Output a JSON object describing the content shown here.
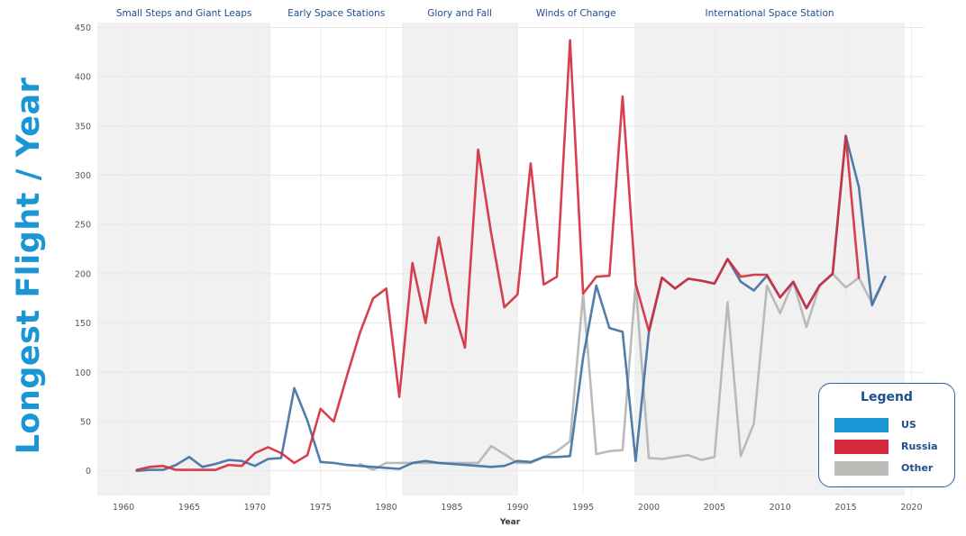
{
  "chart_data": {
    "type": "line",
    "ylabel": "Longest Flight / Year",
    "xlabel": "Year",
    "xlim": [
      1958,
      2021
    ],
    "ylim": [
      -25,
      455
    ],
    "x_ticks": [
      1960,
      1965,
      1970,
      1975,
      1980,
      1985,
      1990,
      1995,
      2000,
      2005,
      2010,
      2015,
      2020
    ],
    "y_ticks": [
      0,
      50,
      100,
      150,
      200,
      250,
      300,
      350,
      400,
      450
    ],
    "grid": true,
    "eras": [
      {
        "label": "Small Steps and Giant Leaps",
        "start": 1958,
        "end": 1971.2,
        "shaded": true
      },
      {
        "label": "Early Space Stations",
        "start": 1971.2,
        "end": 1981.2,
        "shaded": false
      },
      {
        "label": "Glory and Fall",
        "start": 1981.2,
        "end": 1990,
        "shaded": true
      },
      {
        "label": "Winds of Change",
        "start": 1990,
        "end": 1998.9,
        "shaded": false
      },
      {
        "label": "International Space Station",
        "start": 1998.9,
        "end": 2019.5,
        "shaded": true
      }
    ],
    "legend": {
      "title": "Legend",
      "placement": "bottom-right",
      "items": [
        {
          "label": "US",
          "color": "#1a96d4"
        },
        {
          "label": "Russia",
          "color": "#d42a3c"
        },
        {
          "label": "Other",
          "color": "#bcbcb8"
        }
      ]
    },
    "series": [
      {
        "name": "Other",
        "color": "#b4b4b4",
        "points": [
          [
            1978,
            7
          ],
          [
            1979,
            1
          ],
          [
            1980,
            8
          ],
          [
            1981,
            8
          ],
          [
            1982,
            8
          ],
          [
            1983,
            8
          ],
          [
            1984,
            8
          ],
          [
            1985,
            8
          ],
          [
            1986,
            8
          ],
          [
            1987,
            8
          ],
          [
            1988,
            25
          ],
          [
            1989,
            17
          ],
          [
            1990,
            8
          ],
          [
            1991,
            8
          ],
          [
            1992,
            14
          ],
          [
            1993,
            20
          ],
          [
            1994,
            30
          ],
          [
            1995,
            180
          ],
          [
            1996,
            17
          ],
          [
            1997,
            20
          ],
          [
            1998,
            21
          ],
          [
            1999,
            190
          ],
          [
            2000,
            13
          ],
          [
            2001,
            12
          ],
          [
            2002,
            14
          ],
          [
            2003,
            16
          ],
          [
            2004,
            11
          ],
          [
            2005,
            14
          ],
          [
            2006,
            171
          ],
          [
            2007,
            15
          ],
          [
            2008,
            48
          ],
          [
            2009,
            188
          ],
          [
            2010,
            160
          ],
          [
            2011,
            192
          ],
          [
            2012,
            146
          ],
          [
            2013,
            188
          ],
          [
            2014,
            200
          ],
          [
            2015,
            186
          ],
          [
            2016,
            196
          ],
          [
            2017,
            170
          ],
          [
            2018,
            197
          ]
        ]
      },
      {
        "name": "US",
        "color": "#3f6fa0",
        "points": [
          [
            1961,
            0
          ],
          [
            1962,
            1
          ],
          [
            1963,
            1
          ],
          [
            1964,
            6
          ],
          [
            1965,
            14
          ],
          [
            1966,
            4
          ],
          [
            1967,
            7
          ],
          [
            1968,
            11
          ],
          [
            1969,
            10
          ],
          [
            1970,
            5
          ],
          [
            1971,
            12
          ],
          [
            1972,
            13
          ],
          [
            1973,
            84
          ],
          [
            1974,
            51
          ],
          [
            1975,
            9
          ],
          [
            1976,
            8
          ],
          [
            1977,
            6
          ],
          [
            1978,
            5
          ],
          [
            1979,
            4
          ],
          [
            1980,
            3
          ],
          [
            1981,
            2
          ],
          [
            1982,
            8
          ],
          [
            1983,
            10
          ],
          [
            1984,
            8
          ],
          [
            1985,
            7
          ],
          [
            1986,
            6
          ],
          [
            1987,
            5
          ],
          [
            1988,
            4
          ],
          [
            1989,
            5
          ],
          [
            1990,
            10
          ],
          [
            1991,
            9
          ],
          [
            1992,
            14
          ],
          [
            1993,
            14
          ],
          [
            1994,
            15
          ],
          [
            1995,
            115
          ],
          [
            1996,
            188
          ],
          [
            1997,
            145
          ],
          [
            1998,
            141
          ],
          [
            1999,
            10
          ],
          [
            2000,
            140
          ],
          [
            2001,
            196
          ],
          [
            2002,
            185
          ],
          [
            2003,
            195
          ],
          [
            2004,
            193
          ],
          [
            2005,
            190
          ],
          [
            2006,
            215
          ],
          [
            2007,
            192
          ],
          [
            2008,
            183
          ],
          [
            2009,
            198
          ],
          [
            2010,
            176
          ],
          [
            2011,
            192
          ],
          [
            2012,
            165
          ],
          [
            2013,
            188
          ],
          [
            2014,
            200
          ],
          [
            2015,
            340
          ],
          [
            2016,
            288
          ],
          [
            2017,
            168
          ],
          [
            2018,
            197
          ]
        ]
      },
      {
        "name": "Russia",
        "color": "#d42a3c",
        "points": [
          [
            1961,
            1
          ],
          [
            1962,
            4
          ],
          [
            1963,
            5
          ],
          [
            1964,
            1
          ],
          [
            1965,
            1
          ],
          [
            1966,
            1
          ],
          [
            1967,
            1
          ],
          [
            1968,
            6
          ],
          [
            1969,
            5
          ],
          [
            1970,
            18
          ],
          [
            1971,
            24
          ],
          [
            1972,
            18
          ],
          [
            1973,
            8
          ],
          [
            1974,
            16
          ],
          [
            1975,
            63
          ],
          [
            1976,
            50
          ],
          [
            1977,
            96
          ],
          [
            1978,
            140
          ],
          [
            1979,
            175
          ],
          [
            1980,
            185
          ],
          [
            1981,
            75
          ],
          [
            1982,
            211
          ],
          [
            1983,
            150
          ],
          [
            1984,
            237
          ],
          [
            1985,
            170
          ],
          [
            1986,
            125
          ],
          [
            1987,
            326
          ],
          [
            1988,
            241
          ],
          [
            1989,
            166
          ],
          [
            1990,
            179
          ],
          [
            1991,
            312
          ],
          [
            1992,
            189
          ],
          [
            1993,
            197
          ],
          [
            1994,
            437
          ],
          [
            1995,
            180
          ],
          [
            1996,
            197
          ],
          [
            1997,
            198
          ],
          [
            1998,
            380
          ],
          [
            1999,
            190
          ],
          [
            2000,
            142
          ],
          [
            2001,
            196
          ],
          [
            2002,
            185
          ],
          [
            2003,
            195
          ],
          [
            2004,
            193
          ],
          [
            2005,
            190
          ],
          [
            2006,
            215
          ],
          [
            2007,
            197
          ],
          [
            2008,
            199
          ],
          [
            2009,
            199
          ],
          [
            2010,
            176
          ],
          [
            2011,
            192
          ],
          [
            2012,
            165
          ],
          [
            2013,
            188
          ],
          [
            2014,
            200
          ],
          [
            2015,
            340
          ],
          [
            2016,
            196
          ]
        ]
      }
    ]
  }
}
